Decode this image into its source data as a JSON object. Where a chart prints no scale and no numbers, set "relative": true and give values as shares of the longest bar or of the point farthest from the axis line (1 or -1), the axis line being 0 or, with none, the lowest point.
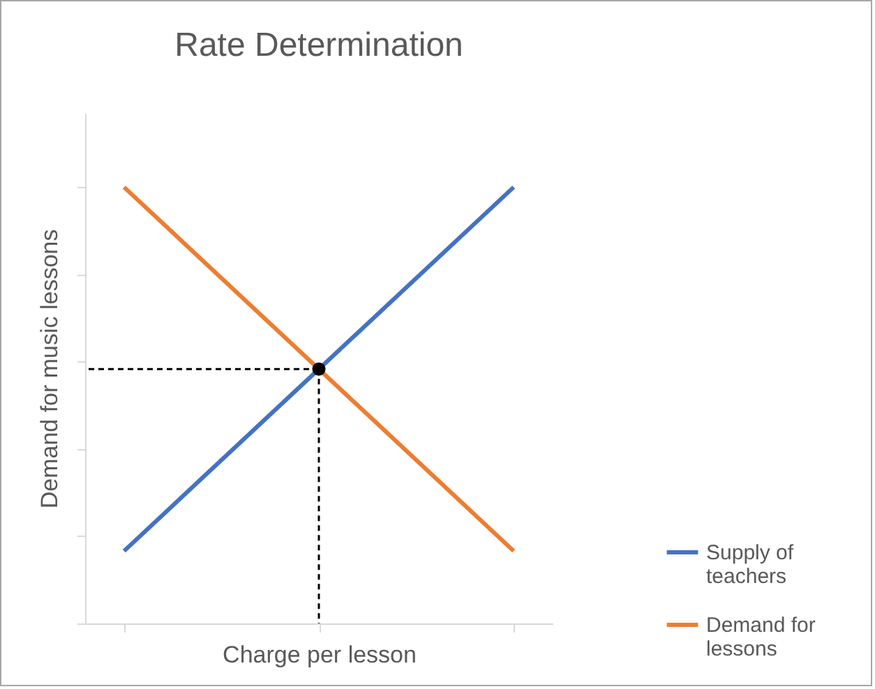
{
  "chart_data": {
    "type": "line",
    "title": "Rate Determination",
    "xlabel": "Charge per lesson",
    "ylabel": "Demand for music lessons",
    "relative": true,
    "categories": [
      null,
      null,
      null
    ],
    "tick_labels": false,
    "legend": "bottom right",
    "series": [
      {
        "name": "Supply of teachers",
        "color": "#4472c4",
        "values": [
          0.166,
          0.583,
          1
        ]
      },
      {
        "name": "Demand for lessons",
        "color": "#ed7d31",
        "values": [
          1,
          0.583,
          0.166
        ]
      }
    ],
    "ref_lines": [
      {
        "axis": "y",
        "value": 0.583,
        "color": "#000000",
        "line_style": "dashed"
      },
      {
        "axis": "x",
        "color": "#000000",
        "line_style": "dashed"
      }
    ]
  }
}
